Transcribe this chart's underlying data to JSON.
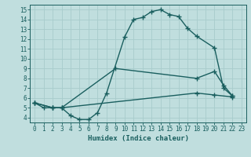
{
  "title": "",
  "xlabel": "Humidex (Indice chaleur)",
  "xlim": [
    -0.5,
    23.5
  ],
  "ylim": [
    3.5,
    15.5
  ],
  "xticks": [
    0,
    1,
    2,
    3,
    4,
    5,
    6,
    7,
    8,
    9,
    10,
    11,
    12,
    13,
    14,
    15,
    16,
    17,
    18,
    19,
    20,
    21,
    22,
    23
  ],
  "yticks": [
    4,
    5,
    6,
    7,
    8,
    9,
    10,
    11,
    12,
    13,
    14,
    15
  ],
  "bg_color": "#c0dede",
  "grid_color": "#a8cccc",
  "line_color": "#1a5f5f",
  "lines": [
    {
      "x": [
        0,
        1,
        2,
        3,
        4,
        5,
        6,
        7,
        8,
        10,
        11,
        12,
        13,
        14,
        15,
        16,
        17,
        18,
        20,
        21,
        22
      ],
      "y": [
        5.5,
        5.0,
        5.0,
        5.0,
        4.2,
        3.8,
        3.8,
        4.5,
        6.5,
        12.2,
        14.0,
        14.2,
        14.8,
        15.0,
        14.5,
        14.3,
        13.1,
        12.3,
        11.1,
        7.0,
        6.2
      ]
    },
    {
      "x": [
        0,
        2,
        3,
        9,
        18,
        20,
        21,
        22
      ],
      "y": [
        5.5,
        5.0,
        5.0,
        9.0,
        8.0,
        8.7,
        7.3,
        6.2
      ]
    },
    {
      "x": [
        0,
        2,
        3,
        18,
        20,
        22
      ],
      "y": [
        5.5,
        5.0,
        5.0,
        6.5,
        6.3,
        6.1
      ]
    }
  ]
}
